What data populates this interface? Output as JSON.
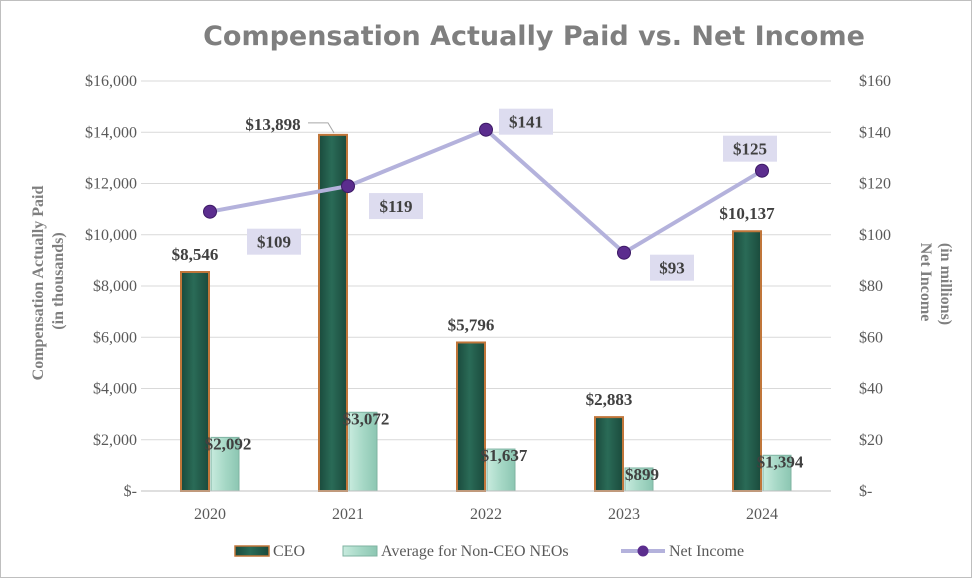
{
  "chart_data": {
    "type": "bar",
    "title": "Compensation Actually Paid vs. Net Income",
    "categories": [
      "2020",
      "2021",
      "2022",
      "2023",
      "2024"
    ],
    "ylabel_left": [
      "Compensation Actually Paid",
      "(in thousands)"
    ],
    "ylabel_right": [
      "Net Income",
      "(in millions)"
    ],
    "ylim_left": [
      0,
      16000
    ],
    "ylim_right": [
      0,
      160
    ],
    "yticks_left": [
      "$-",
      "$2,000",
      "$4,000",
      "$6,000",
      "$8,000",
      "$10,000",
      "$12,000",
      "$14,000",
      "$16,000"
    ],
    "yticks_right": [
      "$-",
      "$20",
      "$40",
      "$60",
      "$80",
      "$100",
      "$120",
      "$140",
      "$160"
    ],
    "grid": true,
    "legend_position": "bottom",
    "series": [
      {
        "name": "CEO",
        "kind": "bar",
        "axis": "left",
        "values": [
          8546,
          13898,
          5796,
          2883,
          10137
        ],
        "labels": [
          "$8,546",
          "$13,898",
          "$5,796",
          "$2,883",
          "$10,137"
        ],
        "color": "#215c4b",
        "edge_color": "#c0763a"
      },
      {
        "name": "Average for Non-CEO NEOs",
        "kind": "bar",
        "axis": "left",
        "values": [
          2092,
          3072,
          1637,
          899,
          1394
        ],
        "labels": [
          "$2,092",
          "$3,072",
          "$1,637",
          "$899",
          "$1,394"
        ],
        "color": "#a9d9c9",
        "edge_color": "#7fb3a2"
      },
      {
        "name": "Net Income",
        "kind": "line",
        "axis": "right",
        "values": [
          109,
          119,
          141,
          93,
          125
        ],
        "labels": [
          "$109",
          "$119",
          "$141",
          "$93",
          "$125"
        ],
        "color": "#b4b2dc",
        "marker_color": "#5b2d8e",
        "label_bg": "#dddcef"
      }
    ]
  }
}
